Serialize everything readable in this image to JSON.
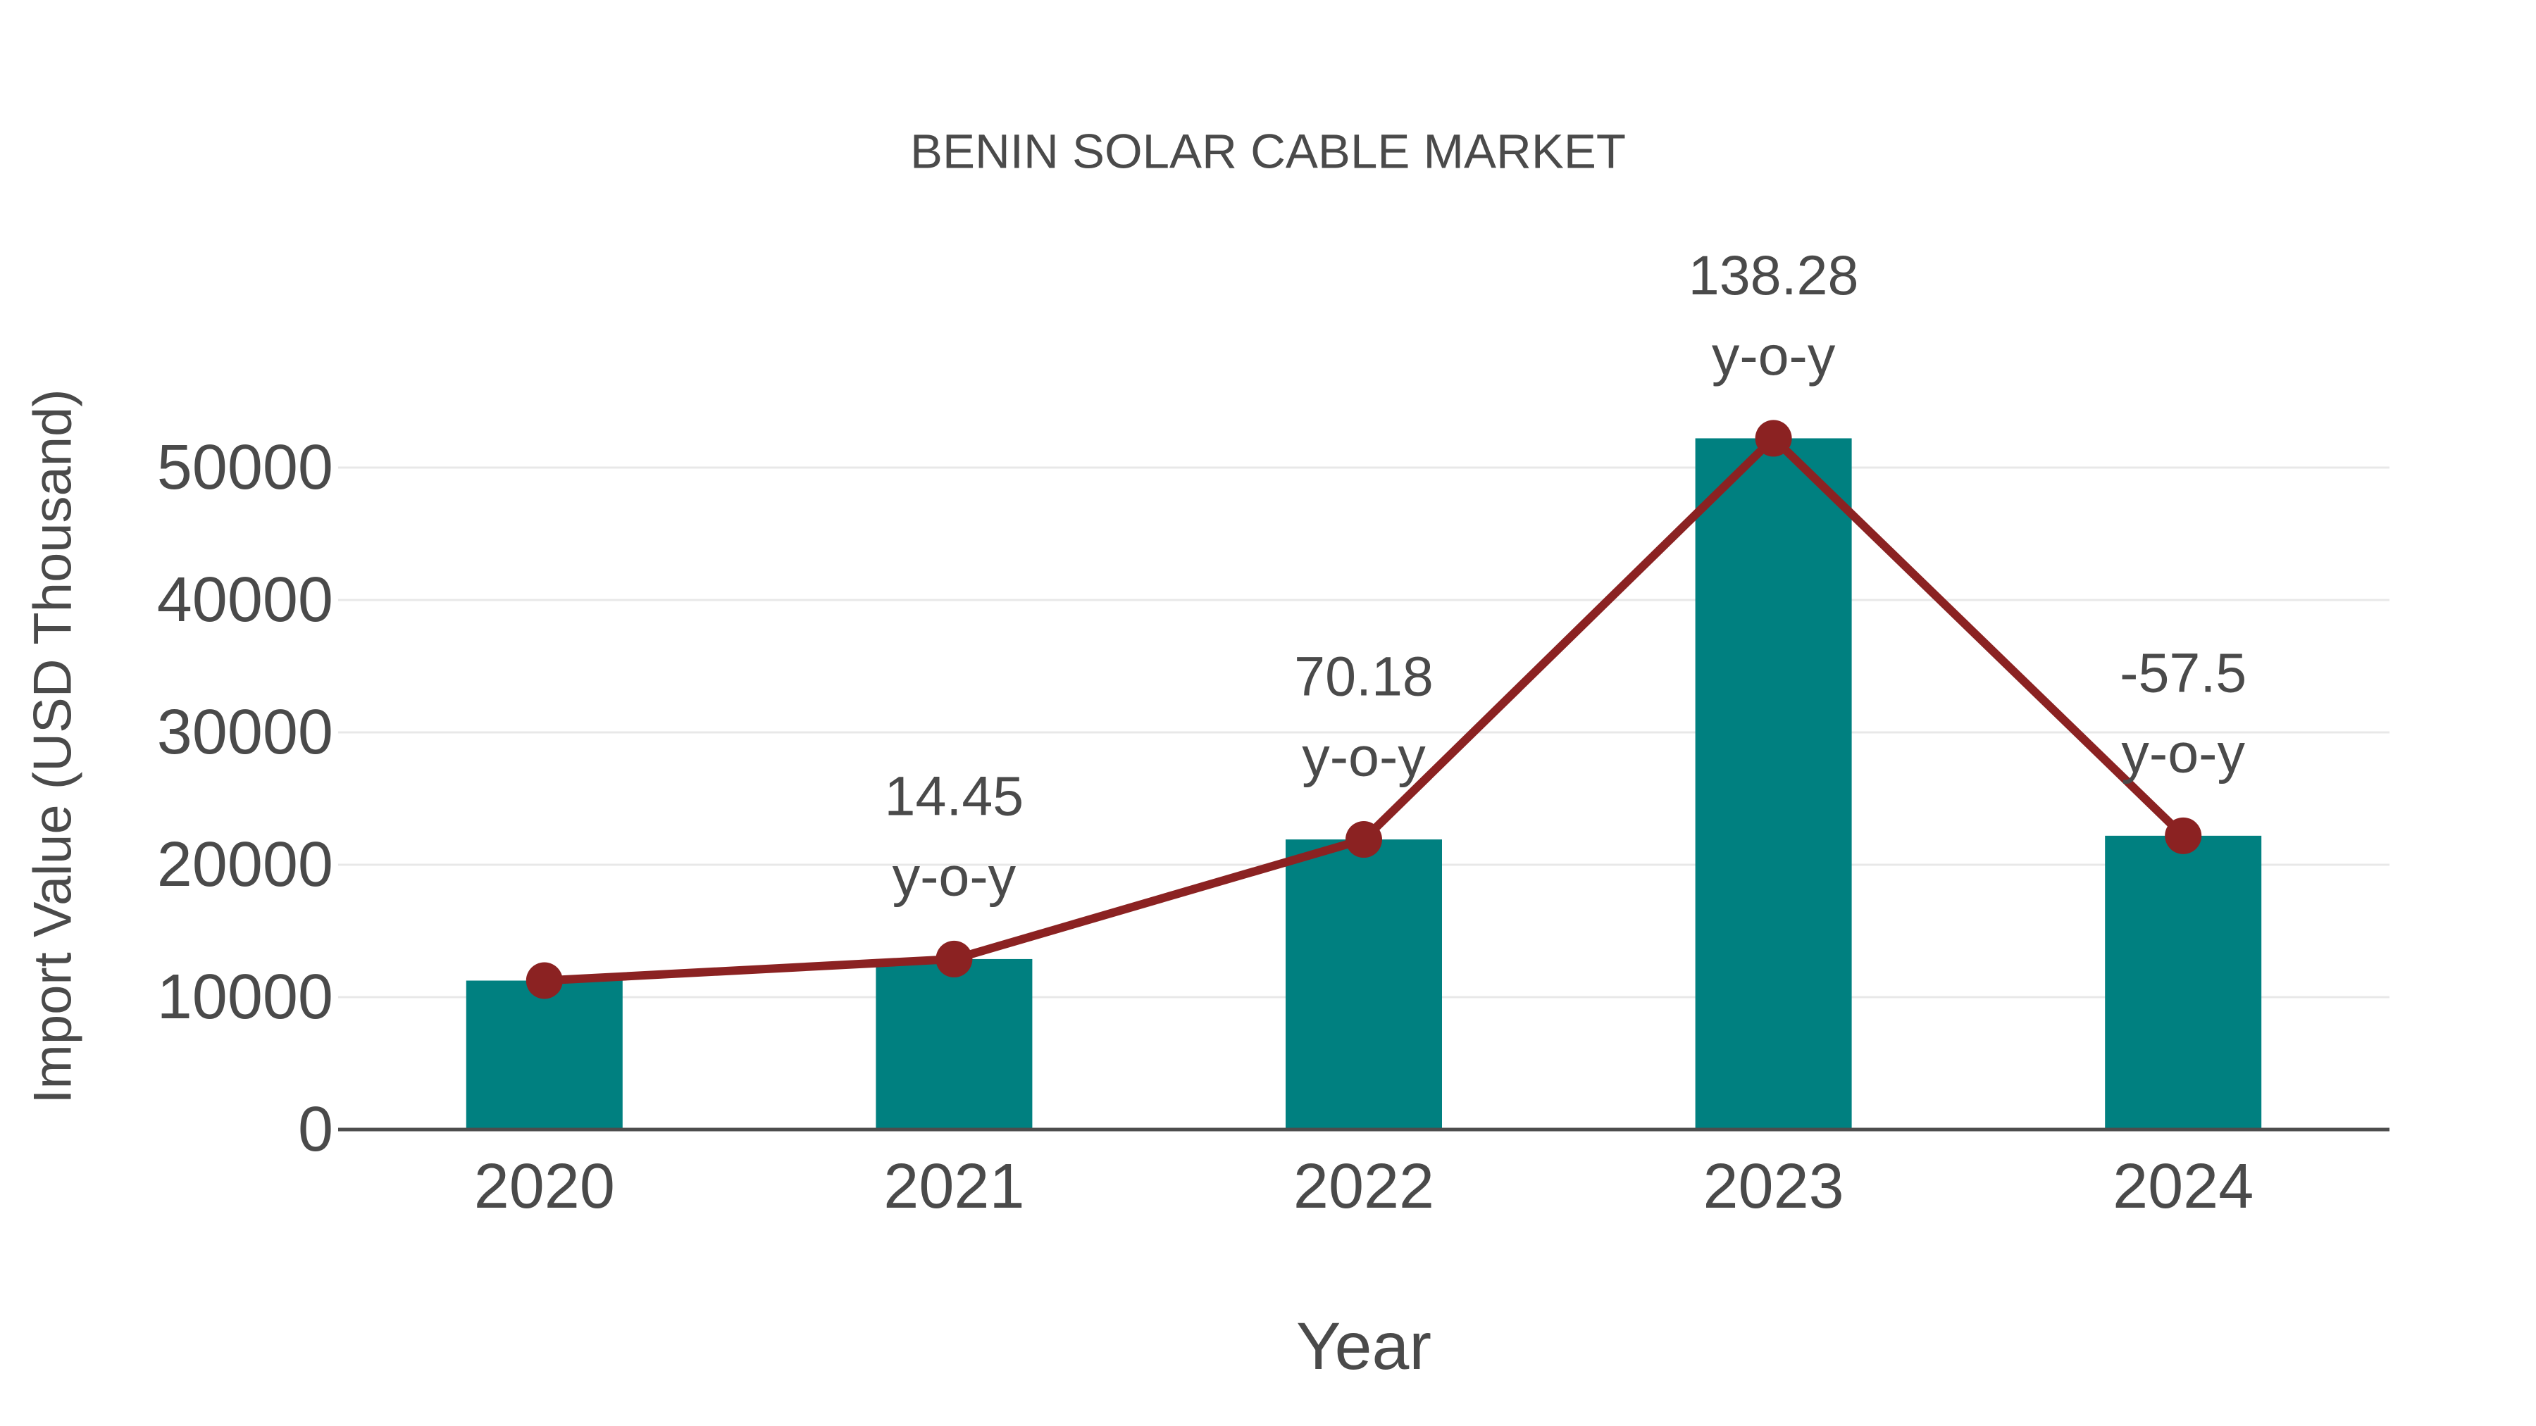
{
  "chart_data": {
    "type": "bar+line",
    "title": "BENIN SOLAR CABLE MARKET",
    "xlabel": "Year",
    "ylabel": "Import Value (USD Thousand)",
    "categories": [
      "2020",
      "2021",
      "2022",
      "2023",
      "2024"
    ],
    "bar_values": [
      11250,
      12876,
      21912,
      52211,
      22190
    ],
    "line_values": [
      11250,
      12876,
      21912,
      52211,
      22190
    ],
    "annotations": [
      {
        "category": "2021",
        "line1": "14.45",
        "line2": "y-o-y"
      },
      {
        "category": "2022",
        "line1": "70.18",
        "line2": "y-o-y"
      },
      {
        "category": "2023",
        "line1": "138.28",
        "line2": "y-o-y"
      },
      {
        "category": "2024",
        "line1": "-57.5",
        "line2": "y-o-y"
      }
    ],
    "ytick_labels": [
      "0",
      "10000",
      "20000",
      "30000",
      "40000",
      "50000"
    ],
    "ytick_values": [
      0,
      10000,
      20000,
      30000,
      40000,
      50000
    ],
    "ylim": [
      0,
      55500
    ],
    "grid": true,
    "legend_position": "none",
    "colors": {
      "bar": "#008080",
      "line": "#8B2222",
      "marker": "#8B2222",
      "grid": "#e8e8e8",
      "axis_line": "#4d4d4d",
      "text": "#4a4a4a",
      "background": "#ffffff"
    }
  }
}
